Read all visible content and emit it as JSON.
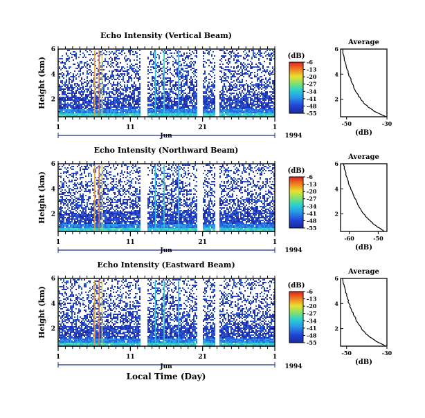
{
  "figure": {
    "xlabel_bottom": "Local Time (Day)",
    "month_label": "Jun",
    "year_label": "1994",
    "cbar_unit": "(dB)"
  },
  "panels": [
    {
      "title": "Echo Intensity (Vertical Beam)",
      "ylabel": "Height (km)",
      "yticks": [
        "6",
        "4",
        "2"
      ],
      "xticks": [
        "1",
        "11",
        "21",
        "1"
      ],
      "cbar_ticks": [
        "-6",
        "-13",
        "-20",
        "-27",
        "-34",
        "-41",
        "-48",
        "-55"
      ],
      "avg_title": "Average",
      "avg_yticks": [
        "6",
        "4",
        "2"
      ],
      "avg_xticks": [
        "-50",
        "-30"
      ],
      "avg_xlabel": "(dB)"
    },
    {
      "title": "Echo Intensity (Northward Beam)",
      "ylabel": "Height (km)",
      "yticks": [
        "6",
        "4",
        "2"
      ],
      "xticks": [
        "1",
        "11",
        "21",
        "1"
      ],
      "cbar_ticks": [
        "-6",
        "-13",
        "-20",
        "-27",
        "-34",
        "-41",
        "-48",
        "-55"
      ],
      "avg_title": "Average",
      "avg_yticks": [
        "6",
        "4",
        "2"
      ],
      "avg_xticks": [
        "-60",
        "-50"
      ],
      "avg_xlabel": "(dB)"
    },
    {
      "title": "Echo Intensity (Eastward Beam)",
      "ylabel": "Height (km)",
      "yticks": [
        "6",
        "4",
        "2"
      ],
      "xticks": [
        "1",
        "11",
        "21",
        "1"
      ],
      "cbar_ticks": [
        "-6",
        "-13",
        "-20",
        "-27",
        "-34",
        "-41",
        "-48",
        "-55"
      ],
      "avg_title": "Average",
      "avg_yticks": [
        "6",
        "4",
        "2"
      ],
      "avg_xticks": [
        "-50",
        "-30"
      ],
      "avg_xlabel": "(dB)"
    }
  ],
  "chart_data": [
    {
      "type": "heatmap",
      "title": "Echo Intensity (Vertical Beam)",
      "ylabel": "Height (km)",
      "x_range_day": [
        1,
        31
      ],
      "y_range_km": [
        0.6,
        6
      ],
      "color_range_db": [
        -55,
        -6
      ],
      "colorbar_ticks": [
        -6,
        -13,
        -20,
        -27,
        -34,
        -41,
        -48,
        -55
      ],
      "data_gaps_day": [
        [
          12.3,
          13.2
        ],
        [
          20.2,
          21
        ],
        [
          22.7,
          23.2
        ]
      ],
      "strong_echo_days": [
        6.0,
        6.6,
        7.0,
        14.4,
        15.6,
        17.6
      ]
    },
    {
      "type": "line",
      "title": "Average",
      "xlabel": "(dB)",
      "xlim": [
        -53,
        -30
      ],
      "ylim": [
        0.6,
        6
      ],
      "x": [
        -52.0,
        -51.5,
        -50.8,
        -50.0,
        -49.0,
        -47.8,
        -46.5,
        -45.0,
        -43.0,
        -41.0,
        -38.5,
        -36.0,
        -33.0,
        -30.5
      ],
      "y": [
        6.0,
        5.5,
        5.0,
        4.5,
        4.0,
        3.5,
        3.0,
        2.5,
        2.0,
        1.6,
        1.3,
        1.0,
        0.8,
        0.6
      ]
    },
    {
      "type": "heatmap",
      "title": "Echo Intensity (Northward Beam)",
      "ylabel": "Height (km)",
      "x_range_day": [
        1,
        31
      ],
      "y_range_km": [
        0.6,
        6
      ],
      "color_range_db": [
        -55,
        -6
      ],
      "colorbar_ticks": [
        -6,
        -13,
        -20,
        -27,
        -34,
        -41,
        -48,
        -55
      ],
      "data_gaps_day": [
        [
          12.3,
          13.2
        ],
        [
          20.2,
          21
        ],
        [
          22.7,
          23.2
        ]
      ],
      "strong_echo_days": [
        6.0,
        6.6,
        7.0,
        14.4,
        15.6,
        17.6
      ]
    },
    {
      "type": "line",
      "title": "Average",
      "xlabel": "(dB)",
      "xlim": [
        -63,
        -47
      ],
      "ylim": [
        0.6,
        6
      ],
      "x": [
        -62.0,
        -61.5,
        -61.0,
        -60.3,
        -59.5,
        -58.5,
        -57.5,
        -56.5,
        -55.0,
        -53.5,
        -52.0,
        -50.5,
        -49.0,
        -48.0
      ],
      "y": [
        6.0,
        5.5,
        5.0,
        4.5,
        4.0,
        3.5,
        3.0,
        2.5,
        2.0,
        1.6,
        1.3,
        1.0,
        0.8,
        0.6
      ]
    },
    {
      "type": "heatmap",
      "title": "Echo Intensity (Eastward Beam)",
      "ylabel": "Height (km)",
      "x_range_day": [
        1,
        31
      ],
      "y_range_km": [
        0.6,
        6
      ],
      "color_range_db": [
        -55,
        -6
      ],
      "colorbar_ticks": [
        -6,
        -13,
        -20,
        -27,
        -34,
        -41,
        -48,
        -55
      ],
      "data_gaps_day": [
        [
          12.3,
          13.2
        ],
        [
          20.2,
          21
        ],
        [
          22.7,
          23.2
        ]
      ],
      "strong_echo_days": [
        6.0,
        6.6,
        7.0,
        14.4,
        15.6,
        17.6
      ]
    },
    {
      "type": "line",
      "title": "Average",
      "xlabel": "(dB)",
      "xlim": [
        -53,
        -30
      ],
      "ylim": [
        0.6,
        6
      ],
      "x": [
        -52.0,
        -51.3,
        -50.5,
        -49.7,
        -48.8,
        -47.6,
        -46.2,
        -44.6,
        -42.6,
        -40.6,
        -38.2,
        -35.5,
        -32.8,
        -30.5
      ],
      "y": [
        6.0,
        5.5,
        5.0,
        4.5,
        4.0,
        3.5,
        3.0,
        2.5,
        2.0,
        1.6,
        1.3,
        1.0,
        0.8,
        0.6
      ]
    }
  ]
}
